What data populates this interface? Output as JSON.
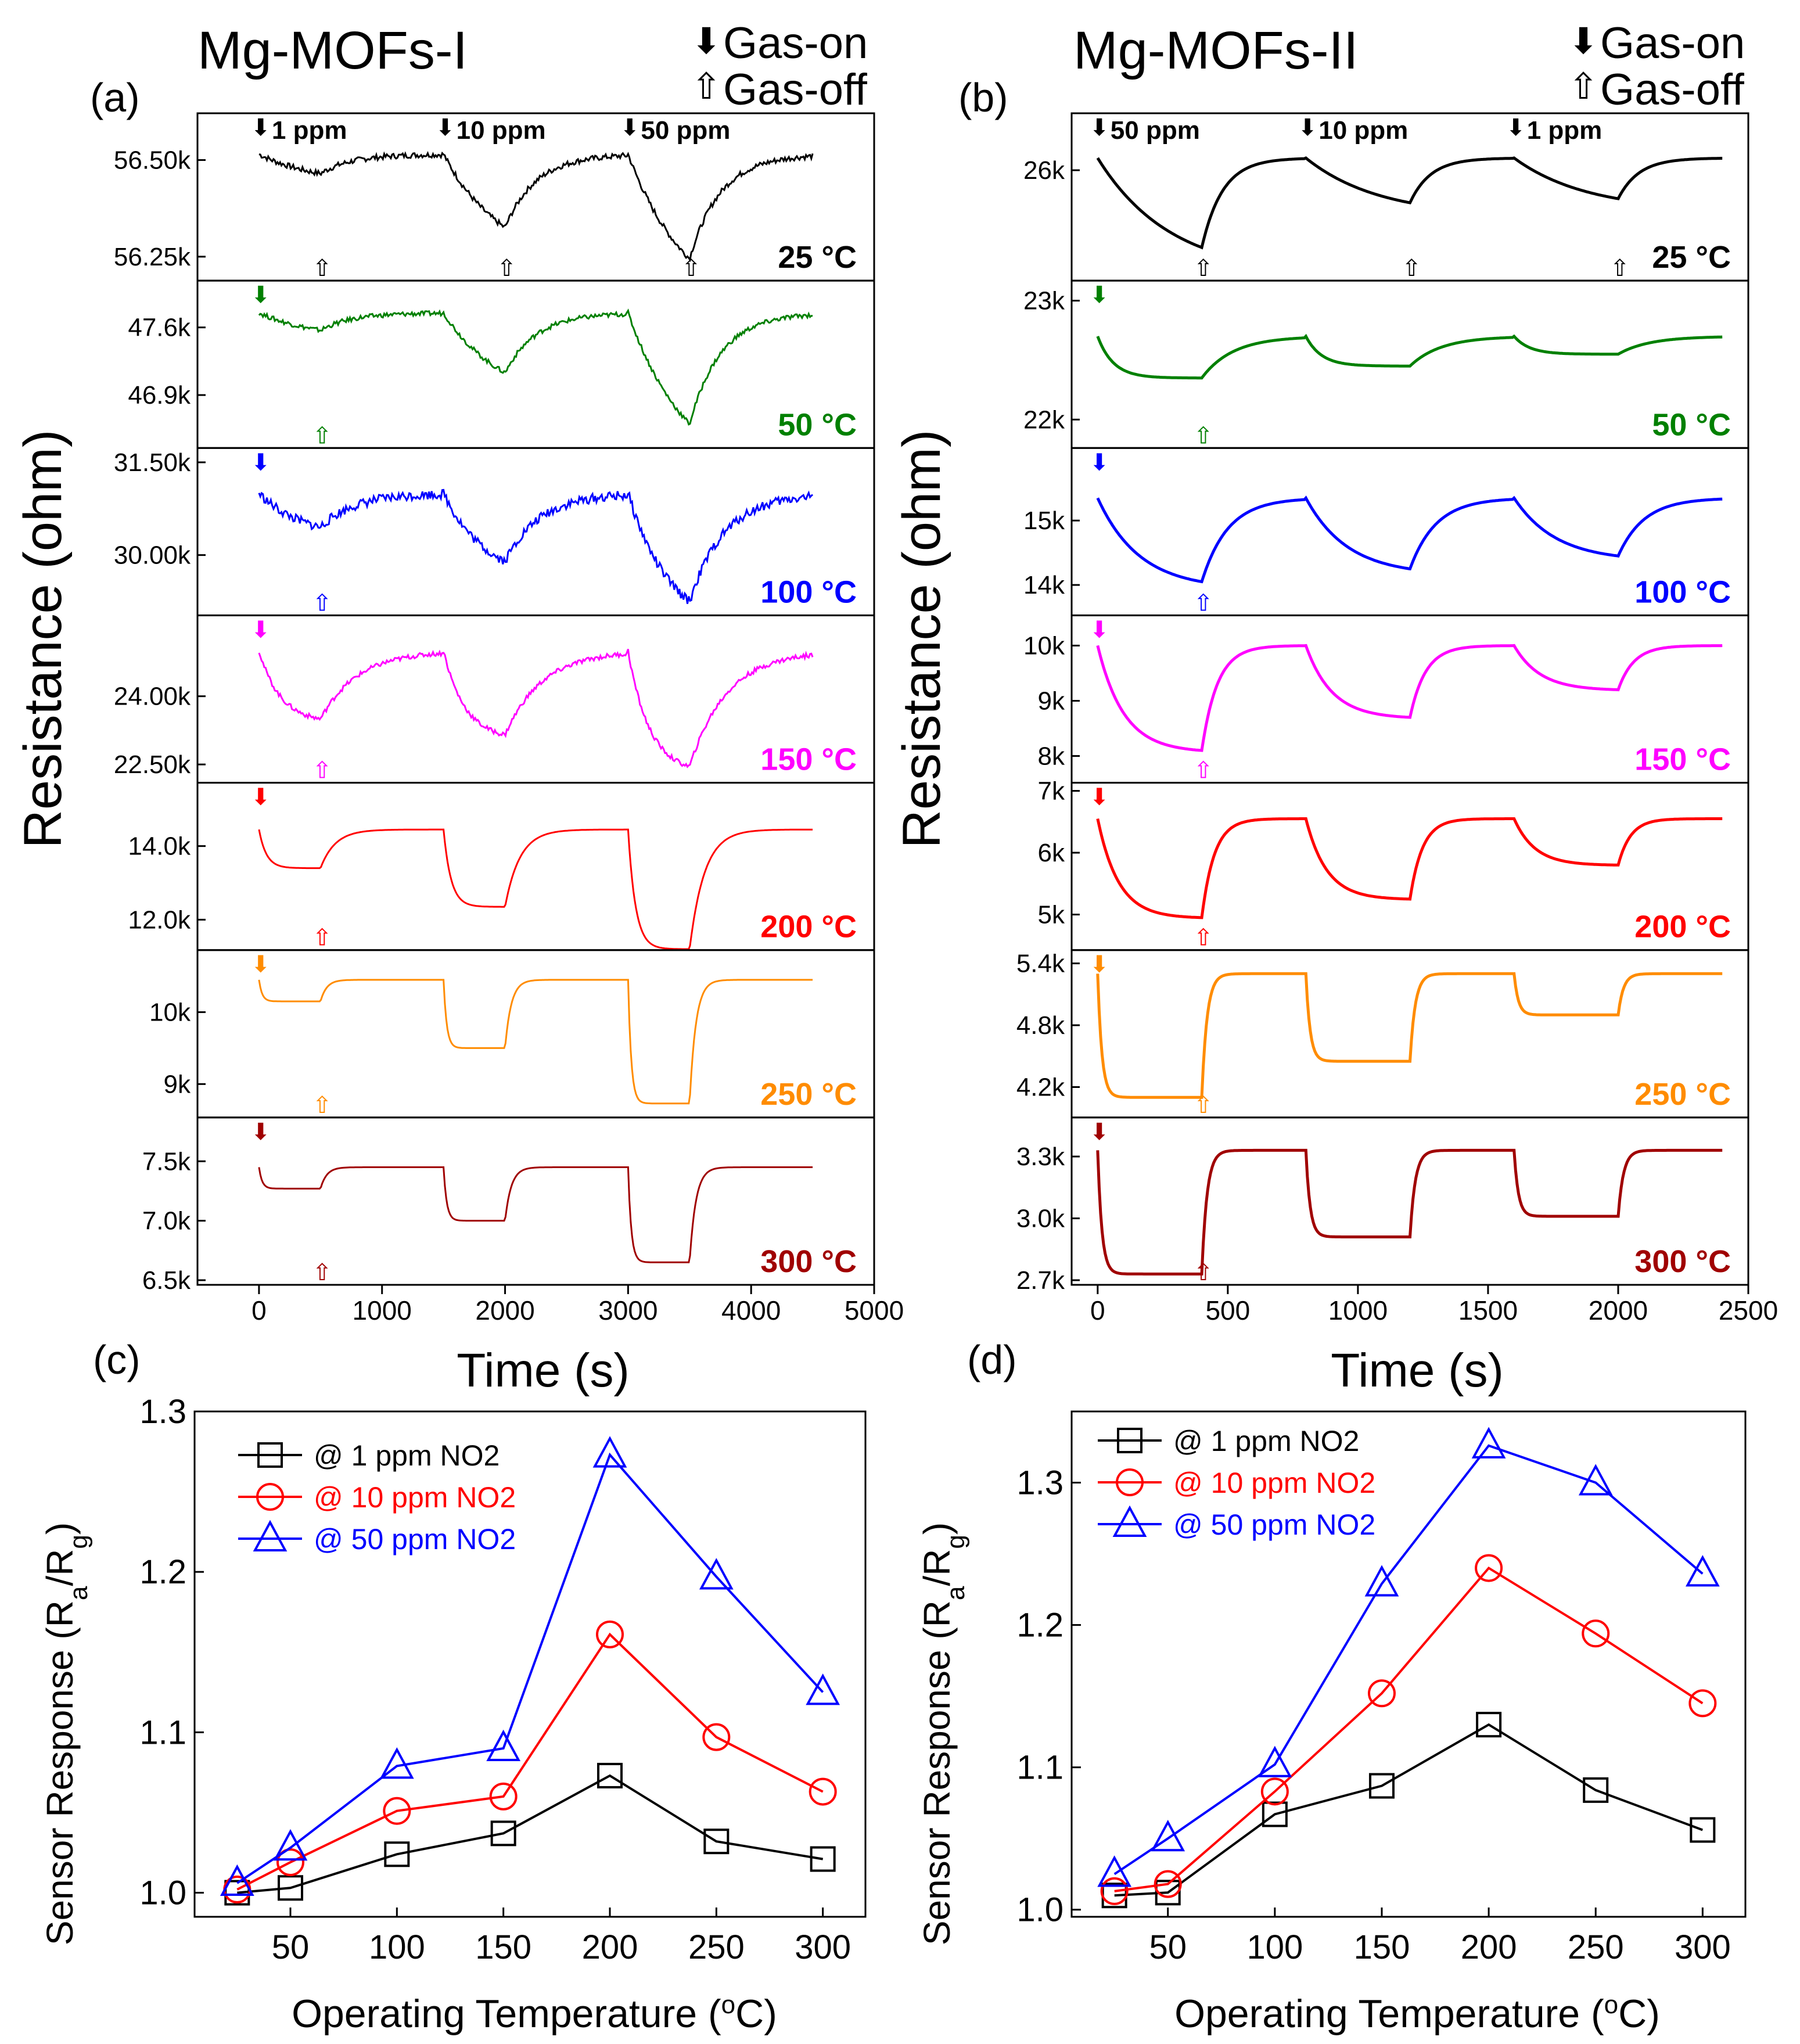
{
  "chart_data": [
    {
      "panel": "(a)",
      "title": "Mg-MOFs-I",
      "type": "line",
      "xlabel": "Time (s)",
      "ylabel": "Resistance (ohm)",
      "xlim": [
        -500,
        5000
      ],
      "xticks": [
        0,
        1000,
        2000,
        3000,
        4000,
        5000
      ],
      "legend": [
        {
          "symbol": "⬇",
          "text": "Gas-on"
        },
        {
          "symbol": "⇧",
          "text": "Gas-off"
        }
      ],
      "gas_on_times": [
        0,
        1500,
        3000
      ],
      "gas_off_times": [
        500,
        2000,
        3500
      ],
      "conc_labels": [
        "1 ppm",
        "10 ppm",
        "50 ppm"
      ],
      "subpanels": [
        {
          "temp": "25 °C",
          "color": "#000000",
          "ylim": [
            56.2,
            56.6
          ],
          "ticks": [
            {
              "v": 56.5,
              "label": "56.50k"
            },
            {
              "v": 56.25,
              "label": "56.25k"
            }
          ],
          "start": 56.515,
          "drops": [
            0.05,
            0.19,
            0.27
          ],
          "tau_drop": 1.0,
          "tau_rec": 0.25,
          "noise": 0.012
        },
        {
          "temp": "50 °C",
          "color": "#008000",
          "ylim": [
            46.4,
            48.0
          ],
          "ticks": [
            {
              "v": 47.6,
              "label": "47.6k"
            },
            {
              "v": 46.9,
              "label": "46.9k"
            }
          ],
          "start": 47.75,
          "drops": [
            0.18,
            0.62,
            1.15
          ],
          "tau_drop": 1.0,
          "tau_rec": 0.25,
          "noise": 0.01
        },
        {
          "temp": "100 °C",
          "color": "#0000ff",
          "ylim": [
            29.1,
            31.6
          ],
          "ticks": [
            {
              "v": 31.5,
              "label": "31.50k"
            },
            {
              "v": 30.0,
              "label": "30.00k"
            }
          ],
          "start": 31.0,
          "drops": [
            0.55,
            1.1,
            1.75
          ],
          "tau_drop": 0.7,
          "tau_rec": 0.28,
          "noise": 0.02
        },
        {
          "temp": "150 °C",
          "color": "#ff00ff",
          "ylim": [
            22.2,
            25.6
          ],
          "ticks": [
            {
              "v": 24.0,
              "label": "24.00k"
            },
            {
              "v": 22.5,
              "label": "22.50k"
            }
          ],
          "start": 25.0,
          "drops": [
            1.5,
            1.85,
            2.55
          ],
          "tau_drop": 0.35,
          "tau_rec": 0.3,
          "noise": 0.01
        },
        {
          "temp": "200 °C",
          "color": "#ff0000",
          "ylim": [
            11.3,
            15.5
          ],
          "ticks": [
            {
              "v": 14.0,
              "label": "14.0k"
            },
            {
              "v": 12.0,
              "label": "12.0k"
            }
          ],
          "start": 14.45,
          "drops": [
            1.05,
            2.1,
            3.25
          ],
          "tau_drop": 0.12,
          "tau_rec": 0.12,
          "noise": 0.0
        },
        {
          "temp": "250 °C",
          "color": "#ff8c00",
          "ylim": [
            8.6,
            10.75
          ],
          "ticks": [
            {
              "v": 10.0,
              "label": "10k"
            },
            {
              "v": 9.0,
              "label": "9k"
            }
          ],
          "start": 10.45,
          "drops": [
            0.3,
            0.95,
            1.72
          ],
          "tau_drop": 0.05,
          "tau_rec": 0.05,
          "noise": 0.0
        },
        {
          "temp": "300 °C",
          "color": "#a00000",
          "ylim": [
            6.5,
            7.8
          ],
          "ticks": [
            {
              "v": 7.5,
              "label": "7.5k"
            },
            {
              "v": 7.0,
              "label": "7.0k"
            },
            {
              "v": 6.5,
              "label": "6.5k"
            }
          ],
          "start": 7.45,
          "drops": [
            0.18,
            0.45,
            0.8
          ],
          "tau_drop": 0.05,
          "tau_rec": 0.05,
          "noise": 0.0
        }
      ]
    },
    {
      "panel": "(b)",
      "title": "Mg-MOFs-II",
      "type": "scatter-line",
      "xlabel": "Time (s)",
      "ylabel": "Resistance (ohm)",
      "xlim": [
        -100,
        2500
      ],
      "xticks": [
        0,
        500,
        1000,
        1500,
        2000,
        2500
      ],
      "legend": [
        {
          "symbol": "⬇",
          "text": "Gas-on"
        },
        {
          "symbol": "⇧",
          "text": "Gas-off"
        }
      ],
      "gas_on_times": [
        0,
        800,
        1600
      ],
      "gas_off_times": [
        400,
        1200,
        2000
      ],
      "conc_labels": [
        "50 ppm",
        "10 ppm",
        "1 ppm"
      ],
      "subpanels": [
        {
          "temp": "25 °C",
          "color": "#000000",
          "ylim": [
            24.7,
            26.6
          ],
          "ticks": [
            {
              "v": 26.0,
              "label": "26k"
            }
          ],
          "start": 26.15,
          "drops": [
            1.1,
            0.55,
            0.5
          ],
          "tau_drop": 0.7,
          "tau_rec": 0.2,
          "noise": 0.0
        },
        {
          "temp": "50 °C",
          "color": "#008000",
          "ylim": [
            21.8,
            23.1
          ],
          "ticks": [
            {
              "v": 23.0,
              "label": "23k"
            },
            {
              "v": 22.0,
              "label": "22k"
            }
          ],
          "start": 22.7,
          "drops": [
            0.35,
            0.25,
            0.15
          ],
          "tau_drop": 0.15,
          "tau_rec": 0.3,
          "noise": 0.0
        },
        {
          "temp": "100 °C",
          "color": "#0000ff",
          "ylim": [
            13.6,
            16.0
          ],
          "ticks": [
            {
              "v": 15.0,
              "label": "15k"
            },
            {
              "v": 14.0,
              "label": "14k"
            }
          ],
          "start": 15.35,
          "drops": [
            1.3,
            1.1,
            0.9
          ],
          "tau_drop": 0.4,
          "tau_rec": 0.25,
          "noise": 0.0
        },
        {
          "temp": "150 °C",
          "color": "#ff00ff",
          "ylim": [
            7.6,
            10.4
          ],
          "ticks": [
            {
              "v": 10.0,
              "label": "10k"
            },
            {
              "v": 9.0,
              "label": "9k"
            },
            {
              "v": 8.0,
              "label": "8k"
            }
          ],
          "start": 10.0,
          "drops": [
            1.9,
            1.3,
            0.8
          ],
          "tau_drop": 0.25,
          "tau_rec": 0.15,
          "noise": 0.0
        },
        {
          "temp": "200 °C",
          "color": "#ff0000",
          "ylim": [
            4.5,
            7.0
          ],
          "ticks": [
            {
              "v": 7.0,
              "label": "7k"
            },
            {
              "v": 6.0,
              "label": "6k"
            },
            {
              "v": 5.0,
              "label": "5k"
            }
          ],
          "start": 6.55,
          "drops": [
            1.6,
            1.3,
            0.75
          ],
          "tau_drop": 0.2,
          "tau_rec": 0.12,
          "noise": 0.0
        },
        {
          "temp": "250 °C",
          "color": "#ff8c00",
          "ylim": [
            3.95,
            5.45
          ],
          "ticks": [
            {
              "v": 5.4,
              "label": "5.4k"
            },
            {
              "v": 4.8,
              "label": "4.8k"
            },
            {
              "v": 4.2,
              "label": "4.2k"
            }
          ],
          "start": 5.3,
          "drops": [
            1.2,
            0.85,
            0.4
          ],
          "tau_drop": 0.04,
          "tau_rec": 0.05,
          "noise": 0.0
        },
        {
          "temp": "300 °C",
          "color": "#a00000",
          "ylim": [
            2.7,
            3.45
          ],
          "ticks": [
            {
              "v": 3.3,
              "label": "3.3k"
            },
            {
              "v": 3.0,
              "label": "3.0k"
            },
            {
              "v": 2.7,
              "label": "2.7k"
            }
          ],
          "start": 3.33,
          "drops": [
            0.6,
            0.42,
            0.32
          ],
          "tau_drop": 0.04,
          "tau_rec": 0.05,
          "noise": 0.0
        }
      ]
    },
    {
      "panel": "(c)",
      "type": "line",
      "xlabel": "Operating Temperature (°C)",
      "ylabel": "Sensor Response (Ra/Rg)",
      "x": [
        25,
        50,
        100,
        150,
        200,
        250,
        300
      ],
      "xlim": [
        5,
        320
      ],
      "xticks": [
        50,
        100,
        150,
        200,
        250,
        300
      ],
      "ylim": [
        0.985,
        1.3
      ],
      "yticks": [
        1.0,
        1.1,
        1.2,
        1.3
      ],
      "legend_position": "top-left",
      "series": [
        {
          "name": "@ 1 ppm NO2",
          "color": "#000000",
          "marker": "square",
          "values": [
            1.0,
            1.003,
            1.024,
            1.037,
            1.073,
            1.032,
            1.021
          ]
        },
        {
          "name": "@ 10 ppm NO2",
          "color": "#ff0000",
          "marker": "circle",
          "values": [
            1.002,
            1.019,
            1.051,
            1.06,
            1.161,
            1.097,
            1.063
          ]
        },
        {
          "name": "@ 50 ppm NO2",
          "color": "#0000ff",
          "marker": "triangle",
          "values": [
            1.006,
            1.028,
            1.079,
            1.09,
            1.273,
            1.197,
            1.125
          ]
        }
      ]
    },
    {
      "panel": "(d)",
      "type": "line",
      "xlabel": "Operating Temperature (°C)",
      "ylabel": "Sensor Response (Ra/Rg)",
      "x": [
        25,
        50,
        100,
        150,
        200,
        250,
        300
      ],
      "xlim": [
        5,
        320
      ],
      "xticks": [
        50,
        100,
        150,
        200,
        250,
        300
      ],
      "ylim": [
        0.995,
        1.35
      ],
      "yticks": [
        1.0,
        1.1,
        1.2,
        1.3
      ],
      "legend_position": "top-left",
      "series": [
        {
          "name": "@ 1 ppm NO2",
          "color": "#000000",
          "marker": "square",
          "values": [
            1.01,
            1.012,
            1.067,
            1.087,
            1.13,
            1.084,
            1.056
          ]
        },
        {
          "name": "@ 10 ppm NO2",
          "color": "#ff0000",
          "marker": "circle",
          "values": [
            1.013,
            1.018,
            1.083,
            1.152,
            1.24,
            1.194,
            1.145
          ]
        },
        {
          "name": "@ 50 ppm NO2",
          "color": "#0000ff",
          "marker": "triangle",
          "values": [
            1.025,
            1.05,
            1.102,
            1.229,
            1.326,
            1.3,
            1.236
          ]
        }
      ]
    }
  ]
}
